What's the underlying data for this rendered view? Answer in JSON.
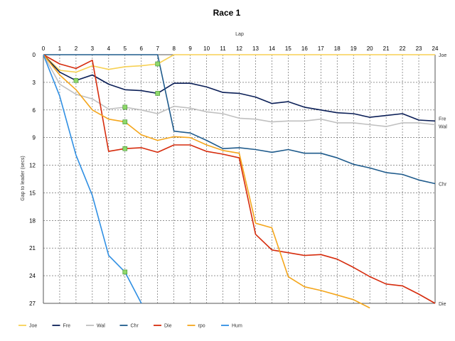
{
  "chart_data": {
    "type": "line",
    "title": "Race 1",
    "xlabel": "Lap",
    "ylabel": "Gap to leader (secs)",
    "x": [
      0,
      1,
      2,
      3,
      4,
      5,
      6,
      7,
      8,
      9,
      10,
      11,
      12,
      13,
      14,
      15,
      16,
      17,
      18,
      19,
      20,
      21,
      22,
      23,
      24
    ],
    "xlim": [
      0,
      24
    ],
    "ylim": [
      0,
      27
    ],
    "y_inverted": true,
    "y_ticks": [
      0,
      3,
      6,
      9,
      12,
      15,
      18,
      21,
      24,
      27
    ],
    "grid": true,
    "legend_position": "bottom",
    "series": [
      {
        "name": "Joe",
        "color": "#f7d154",
        "values": [
          0,
          1.7,
          1.9,
          1.2,
          1.6,
          1.3,
          1.2,
          1.0,
          0,
          0,
          0,
          0,
          0,
          0,
          0,
          0,
          0,
          0,
          0,
          0,
          0,
          0,
          0,
          0,
          0
        ]
      },
      {
        "name": "Fre",
        "color": "#0b1f57",
        "values": [
          0,
          1.9,
          2.8,
          2.2,
          3.2,
          3.8,
          3.9,
          4.2,
          3.1,
          3.1,
          3.5,
          4.1,
          4.2,
          4.6,
          5.3,
          5.1,
          5.7,
          6.0,
          6.3,
          6.4,
          6.8,
          6.6,
          6.4,
          7.1,
          7.2
        ]
      },
      {
        "name": "Wal",
        "color": "#c0c0c0",
        "values": [
          0,
          3.2,
          4.3,
          4.8,
          5.9,
          5.7,
          6.0,
          6.4,
          5.6,
          5.8,
          6.2,
          6.4,
          6.9,
          7.0,
          7.3,
          7.2,
          7.2,
          7.0,
          7.4,
          7.4,
          7.6,
          7.8,
          7.4,
          7.4,
          7.6
        ]
      },
      {
        "name": "Chr",
        "color": "#1f5b8c",
        "values": [
          0,
          0,
          0,
          0,
          0,
          0,
          0,
          0,
          8.3,
          8.5,
          9.3,
          10.2,
          10.1,
          10.3,
          10.6,
          10.3,
          10.7,
          10.7,
          11.2,
          11.9,
          12.3,
          12.8,
          13.0,
          13.6,
          14.0
        ]
      },
      {
        "name": "Die",
        "color": "#d62c0d",
        "values": [
          0,
          1.0,
          1.5,
          0.6,
          10.5,
          10.2,
          10.1,
          10.6,
          9.8,
          9.8,
          10.5,
          10.8,
          11.2,
          19.5,
          21.2,
          21.5,
          21.8,
          21.7,
          22.2,
          23.1,
          24.1,
          24.9,
          25.1,
          26.0,
          27.0
        ]
      },
      {
        "name": "rpo",
        "color": "#f4a61c",
        "values": [
          0,
          2.2,
          3.8,
          6.0,
          7.0,
          7.3,
          8.7,
          9.3,
          8.9,
          9.0,
          9.8,
          10.4,
          10.7,
          18.3,
          18.8,
          24.1,
          25.2,
          25.6,
          26.1,
          26.6,
          27.5,
          null,
          null,
          null,
          null
        ]
      },
      {
        "name": "Hum",
        "color": "#2f8fe3",
        "values": [
          0,
          4.5,
          10.9,
          15.3,
          21.8,
          23.6,
          27.0,
          null,
          null,
          null,
          null,
          null,
          null,
          null,
          null,
          null,
          null,
          null,
          null,
          null,
          null,
          null,
          null,
          null,
          null
        ]
      }
    ],
    "end_labels": [
      {
        "text": "Joe",
        "series": "Joe"
      },
      {
        "text": "Fre",
        "series": "Fre"
      },
      {
        "text": "Wal",
        "series": "Wal"
      },
      {
        "text": "Chr",
        "series": "Chr"
      },
      {
        "text": "Die",
        "series": "Die"
      }
    ],
    "markers": [
      {
        "series": "Fre",
        "x": 2
      },
      {
        "series": "Joe",
        "x": 7
      },
      {
        "series": "Fre",
        "x": 7
      },
      {
        "series": "Wal",
        "x": 5
      },
      {
        "series": "rpo",
        "x": 5
      },
      {
        "series": "Die",
        "x": 5
      },
      {
        "series": "Hum",
        "x": 5
      }
    ],
    "marker_color": "#8fd86b"
  }
}
